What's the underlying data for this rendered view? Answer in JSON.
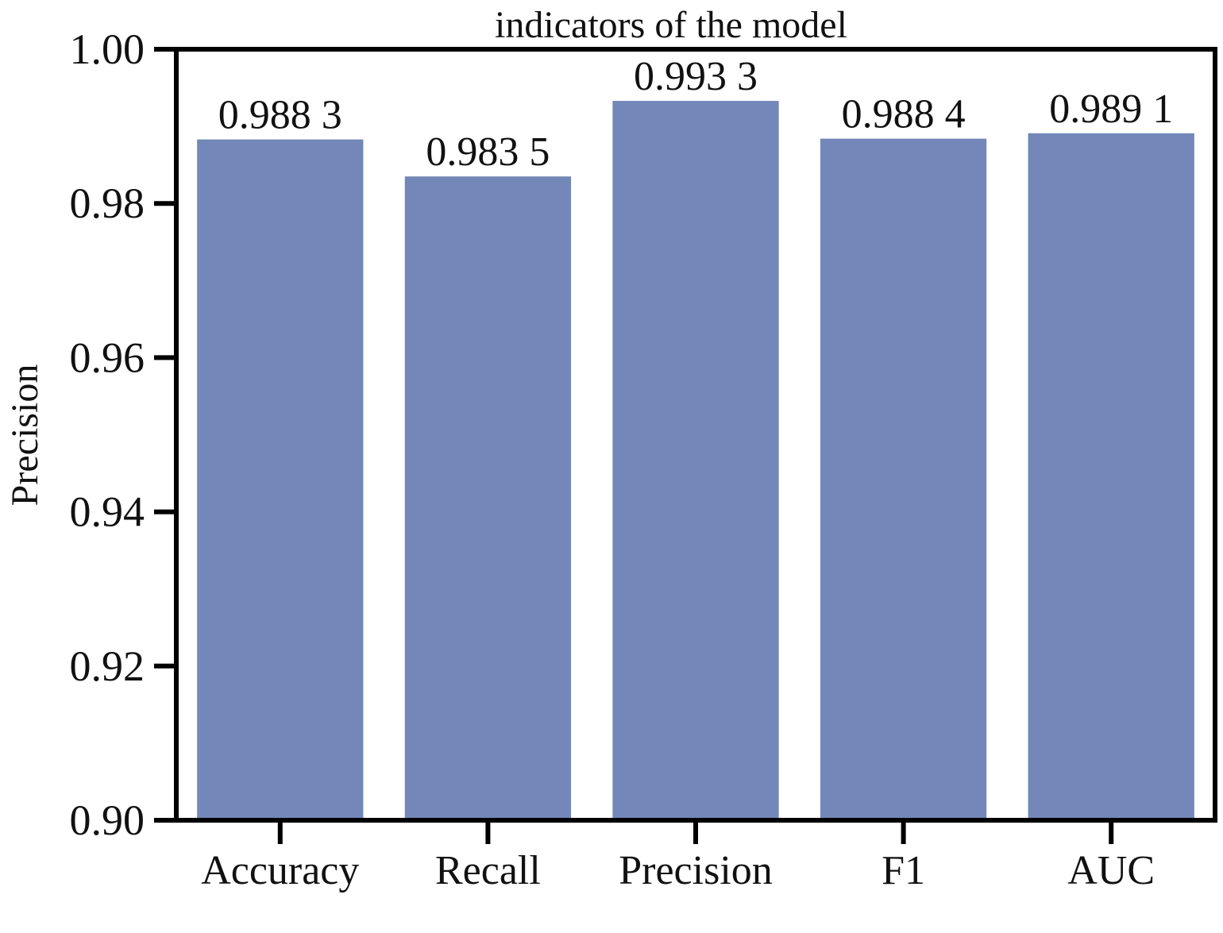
{
  "chart_data": {
    "type": "bar",
    "title": "indicators of the model",
    "xlabel": "",
    "ylabel": "Precision",
    "categories": [
      "Accuracy",
      "Recall",
      "Precision",
      "F1",
      "AUC"
    ],
    "values": [
      0.9883,
      0.9835,
      0.9933,
      0.9884,
      0.9891
    ],
    "value_labels": [
      "0.988 3",
      "0.983 5",
      "0.993 3",
      "0.988 4",
      "0.989 1"
    ],
    "ylim": [
      0.9,
      1.0
    ],
    "yticks": [
      0.9,
      0.92,
      0.94,
      0.96,
      0.98,
      1.0
    ],
    "ytick_labels": [
      "0.90",
      "0.92",
      "0.94",
      "0.96",
      "0.98",
      "1.00"
    ],
    "grid": false,
    "bar_color": "#7387b8"
  }
}
